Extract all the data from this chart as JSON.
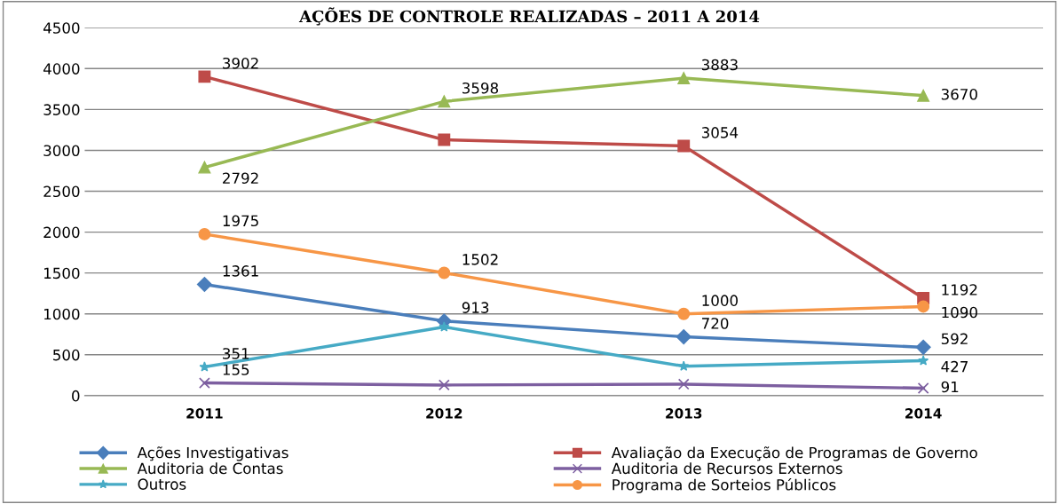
{
  "chart_data": {
    "type": "line",
    "title": "AÇÕES DE CONTROLE REALIZADAS – 2011 A 2014",
    "categories": [
      "2011",
      "2012",
      "2013",
      "2014"
    ],
    "series": [
      {
        "name": "Ações Investigativas",
        "color": "#4a7ebb",
        "marker": "diamond",
        "values": [
          1361,
          913,
          720,
          592
        ],
        "value_labels": [
          "1361",
          "913",
          "720",
          "592"
        ]
      },
      {
        "name": "Avaliação da Execução de Programas de Governo",
        "color": "#be4b48",
        "marker": "square",
        "values": [
          3902,
          3130,
          3054,
          1192
        ],
        "value_labels": [
          "3902",
          null,
          "3054",
          "1192"
        ]
      },
      {
        "name": "Auditoria de Contas",
        "color": "#98b954",
        "marker": "triangle",
        "values": [
          2792,
          3598,
          3883,
          3670
        ],
        "value_labels": [
          "2792",
          "3598",
          "3883",
          "3670"
        ]
      },
      {
        "name": "Auditoria de Recursos Externos",
        "color": "#7d5fa0",
        "marker": "cross",
        "values": [
          155,
          130,
          140,
          91
        ],
        "value_labels": [
          "155",
          null,
          null,
          "91"
        ]
      },
      {
        "name": "Outros",
        "color": "#46aac5",
        "marker": "star",
        "values": [
          351,
          840,
          360,
          427
        ],
        "value_labels": [
          "351",
          null,
          null,
          "427"
        ]
      },
      {
        "name": "Programa de Sorteios Públicos",
        "color": "#f79646",
        "marker": "circle",
        "values": [
          1975,
          1502,
          1000,
          1090
        ],
        "value_labels": [
          "1975",
          "1502",
          "1000",
          "1090"
        ]
      }
    ],
    "ylim": [
      0,
      4500
    ],
    "yticks": [
      0,
      500,
      1000,
      1500,
      2000,
      2500,
      3000,
      3500,
      4000,
      4500
    ],
    "grid": "y",
    "legend": "bottom",
    "line_style": "solid"
  }
}
